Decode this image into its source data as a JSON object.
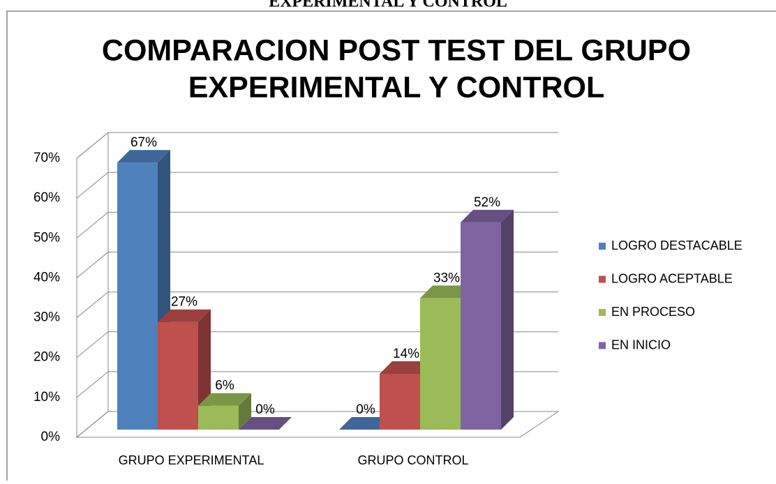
{
  "document_heading": "EXPERIMENTAL Y CONTROL",
  "chart_data": {
    "type": "bar3d",
    "title": [
      "COMPARACION POST TEST DEL GRUPO",
      "EXPERIMENTAL Y CONTROL"
    ],
    "categories": [
      "GRUPO EXPERIMENTAL",
      "GRUPO CONTROL"
    ],
    "series": [
      {
        "name": "LOGRO DESTACABLE",
        "color": "#4f81bd",
        "values": [
          67,
          0
        ],
        "value_labels": [
          "67%",
          "0%"
        ]
      },
      {
        "name": "LOGRO ACEPTABLE",
        "color": "#c0504d",
        "values": [
          27,
          14
        ],
        "value_labels": [
          "27%",
          "14%"
        ]
      },
      {
        "name": "EN PROCESO",
        "color": "#9bbb59",
        "values": [
          6,
          33
        ],
        "value_labels": [
          "6%",
          "33%"
        ]
      },
      {
        "name": "EN INICIO",
        "color": "#8064a2",
        "values": [
          0,
          52
        ],
        "value_labels": [
          "0%",
          "52%"
        ]
      }
    ],
    "ylim": [
      0,
      70
    ],
    "yticks": [
      {
        "value": 0,
        "label": "0%"
      },
      {
        "value": 10,
        "label": "10%"
      },
      {
        "value": 20,
        "label": "20%"
      },
      {
        "value": 30,
        "label": "30%"
      },
      {
        "value": 40,
        "label": "40%"
      },
      {
        "value": 50,
        "label": "50%"
      },
      {
        "value": 60,
        "label": "60%"
      },
      {
        "value": 70,
        "label": "70%"
      }
    ],
    "grid": true,
    "legend": "right"
  }
}
